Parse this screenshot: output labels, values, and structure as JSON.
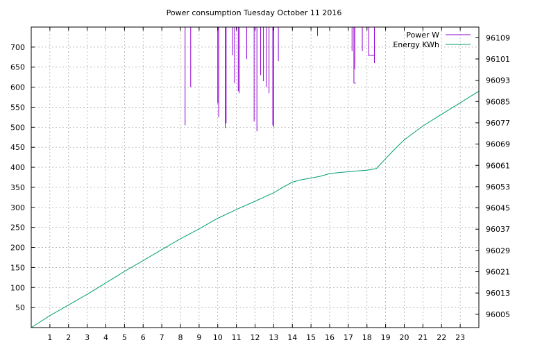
{
  "chart_data": {
    "type": "line",
    "title": "Power consumption Tuesday October 11 2016",
    "xlim": [
      0,
      24
    ],
    "ylim": [
      0,
      750
    ],
    "y2lim": [
      96000,
      96113
    ],
    "grid": true,
    "legend_position": "top-right",
    "x_ticks": [
      1,
      2,
      3,
      4,
      5,
      6,
      7,
      8,
      9,
      10,
      11,
      12,
      13,
      14,
      15,
      16,
      17,
      18,
      19,
      20,
      21,
      22,
      23
    ],
    "y_ticks": [
      50,
      100,
      150,
      200,
      250,
      300,
      350,
      400,
      450,
      500,
      550,
      600,
      650,
      700
    ],
    "y2_ticks": [
      96005,
      96013,
      96021,
      96029,
      96037,
      96045,
      96053,
      96061,
      96069,
      96077,
      96085,
      96093,
      96101,
      96109
    ],
    "series": [
      {
        "name": "Power W",
        "axis": "left",
        "color": "#9400d3",
        "style": "impulse-spikes",
        "spikes": [
          {
            "x": 8.25,
            "low": 505
          },
          {
            "x": 8.55,
            "low": 600
          },
          {
            "x": 10.0,
            "low": 560
          },
          {
            "x": 10.05,
            "low": 525
          },
          {
            "x": 10.4,
            "low": 498
          },
          {
            "x": 10.45,
            "low": 510
          },
          {
            "x": 10.8,
            "low": 680
          },
          {
            "x": 10.9,
            "low": 610
          },
          {
            "x": 11.1,
            "low": 590
          },
          {
            "x": 11.15,
            "low": 585
          },
          {
            "x": 11.55,
            "low": 670
          },
          {
            "x": 11.95,
            "low": 515
          },
          {
            "x": 12.1,
            "low": 490
          },
          {
            "x": 12.3,
            "low": 630
          },
          {
            "x": 12.45,
            "low": 615
          },
          {
            "x": 12.6,
            "low": 600
          },
          {
            "x": 12.75,
            "low": 585
          },
          {
            "x": 12.95,
            "low": 505
          },
          {
            "x": 13.0,
            "low": 500
          },
          {
            "x": 13.25,
            "low": 665
          },
          {
            "x": 15.35,
            "low": 728
          },
          {
            "x": 17.2,
            "low": 690
          },
          {
            "x": 17.3,
            "low": 610
          },
          {
            "x": 17.35,
            "low": 645
          },
          {
            "x": 17.75,
            "low": 690
          },
          {
            "x": 18.1,
            "low": 680
          },
          {
            "x": 18.4,
            "low": 660
          }
        ]
      },
      {
        "name": "Energy KWh",
        "axis": "right",
        "color": "#009e73",
        "x": [
          0,
          1,
          2,
          3,
          4,
          5,
          6,
          7,
          8,
          9,
          10,
          11,
          12,
          13,
          13.5,
          14,
          14.5,
          15,
          15.5,
          16,
          16.5,
          17,
          17.5,
          18,
          18.5,
          19,
          19.5,
          20,
          21,
          22,
          23,
          24
        ],
        "y": [
          96000,
          96004.5,
          96008.5,
          96012.5,
          96016.8,
          96021.1,
          96025.2,
          96029.3,
          96033.4,
          96037.1,
          96041.1,
          96044.4,
          96047.5,
          96050.7,
          96052.8,
          96054.7,
          96055.6,
          96056.2,
          96056.9,
          96057.9,
          96058.3,
          96058.6,
          96058.9,
          96059.2,
          96059.8,
          96063.5,
          96067.2,
          96070.6,
          96075.8,
          96080.2,
          96084.5,
          96088.9
        ]
      }
    ]
  }
}
